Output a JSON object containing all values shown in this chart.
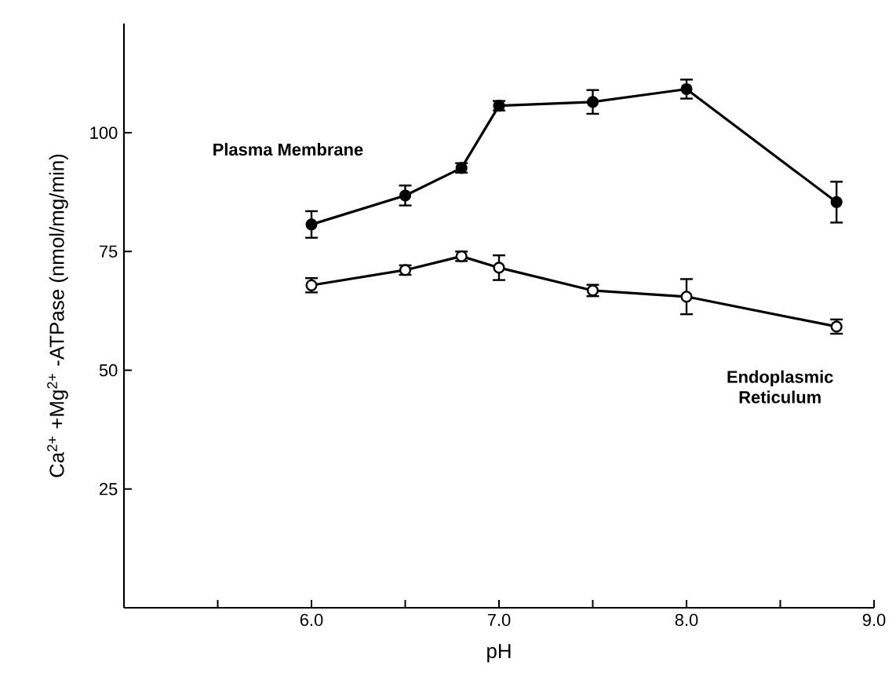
{
  "chart_data": {
    "type": "line",
    "xlabel": "pH",
    "ylabel": "Ca$^{2+}$ +Mg$^{2+}$ -ATPase (nmol/mg/min)",
    "xlim": [
      5.0,
      9.0
    ],
    "ylim": [
      0,
      123
    ],
    "xticks": [
      {
        "value": 5.5,
        "label": null
      },
      {
        "value": 6.0,
        "label": "6.0"
      },
      {
        "value": 6.5,
        "label": null
      },
      {
        "value": 7.0,
        "label": "7.0"
      },
      {
        "value": 7.5,
        "label": null
      },
      {
        "value": 8.0,
        "label": "8.0"
      },
      {
        "value": 8.5,
        "label": null
      },
      {
        "value": 9.0,
        "label": "9.0"
      }
    ],
    "yticks": [
      25,
      50,
      75,
      100
    ],
    "grid": false,
    "legend": false,
    "marker": "circle",
    "line_style": "solid",
    "series": [
      {
        "name": "Plasma Membrane",
        "color": "#000000",
        "x": [
          6.0,
          6.5,
          6.8,
          7.0,
          7.5,
          8.0,
          8.8
        ],
        "values": [
          80.7,
          86.8,
          92.6,
          105.7,
          106.5,
          109.2,
          85.4
        ],
        "errors": [
          2.8,
          2.1,
          1,
          1,
          2.5,
          2,
          4.3
        ]
      },
      {
        "name": "Endoplasmic Reticulum",
        "color": "#000000",
        "x": [
          6.0,
          6.5,
          6.8,
          7.0,
          7.5,
          8.0,
          8.8
        ],
        "values": [
          67.9,
          71.1,
          74,
          71.6,
          66.8,
          65.5,
          59.2
        ],
        "errors": [
          1.5,
          1,
          1,
          2.6,
          1.2,
          3.7,
          1.5
        ]
      }
    ]
  }
}
